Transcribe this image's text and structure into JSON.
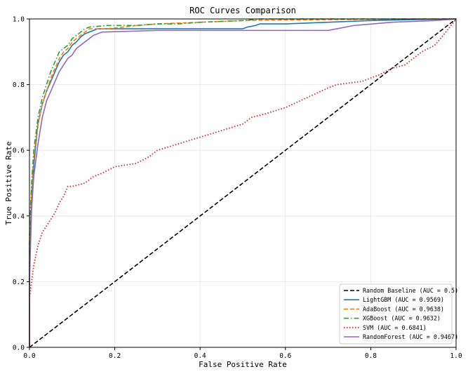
{
  "chart_data": {
    "type": "line",
    "title": "ROC Curves Comparison",
    "xlabel": "False Positive Rate",
    "ylabel": "True Positive Rate",
    "xlim": [
      0.0,
      1.0
    ],
    "ylim": [
      0.0,
      1.0
    ],
    "xticks": [
      0.0,
      0.2,
      0.4,
      0.6,
      0.8,
      1.0
    ],
    "yticks": [
      0.0,
      0.2,
      0.4,
      0.6,
      0.8,
      1.0
    ],
    "xtick_labels": [
      "0.0",
      "0.2",
      "0.4",
      "0.6",
      "0.8",
      "1.0"
    ],
    "ytick_labels": [
      "0.0",
      "0.2",
      "0.4",
      "0.6",
      "0.8",
      "1.0"
    ],
    "grid": true,
    "legend_position": "bottom-right",
    "series": [
      {
        "name": "Random Baseline (AUC = 0.5)",
        "color": "#000000",
        "dash": "dashed",
        "x": [
          0.0,
          1.0
        ],
        "y": [
          0.0,
          1.0
        ]
      },
      {
        "name": "LightGBM (AUC = 0.9569)",
        "color": "#1f77b4",
        "dash": "solid",
        "x": [
          0.0,
          0.0,
          0.005,
          0.01,
          0.015,
          0.02,
          0.03,
          0.04,
          0.05,
          0.06,
          0.07,
          0.08,
          0.09,
          0.1,
          0.11,
          0.12,
          0.13,
          0.14,
          0.16,
          0.2,
          0.3,
          0.4,
          0.5,
          0.51,
          0.53,
          0.54,
          0.6,
          0.7,
          0.8,
          0.9,
          1.0
        ],
        "y": [
          0.0,
          0.3,
          0.44,
          0.55,
          0.62,
          0.68,
          0.74,
          0.78,
          0.81,
          0.84,
          0.87,
          0.89,
          0.9,
          0.92,
          0.93,
          0.945,
          0.955,
          0.96,
          0.97,
          0.97,
          0.97,
          0.97,
          0.97,
          0.975,
          0.98,
          0.985,
          0.985,
          0.99,
          0.995,
          0.998,
          1.0
        ]
      },
      {
        "name": "AdaBoost (AUC = 0.9638)",
        "color": "#ff7f0e",
        "dash": "dashed",
        "x": [
          0.0,
          0.0,
          0.005,
          0.01,
          0.02,
          0.03,
          0.04,
          0.05,
          0.06,
          0.07,
          0.08,
          0.09,
          0.1,
          0.11,
          0.12,
          0.13,
          0.14,
          0.18,
          0.22,
          0.25,
          0.3,
          0.4,
          0.5,
          0.6,
          0.7,
          0.8,
          0.9,
          1.0
        ],
        "y": [
          0.0,
          0.32,
          0.48,
          0.58,
          0.68,
          0.74,
          0.78,
          0.82,
          0.85,
          0.88,
          0.9,
          0.91,
          0.93,
          0.94,
          0.95,
          0.96,
          0.97,
          0.97,
          0.975,
          0.98,
          0.985,
          0.99,
          0.995,
          0.997,
          0.998,
          0.999,
          1.0,
          1.0
        ]
      },
      {
        "name": "XGBoost (AUC = 0.9632)",
        "color": "#2ca02c",
        "dash": "dashdot",
        "x": [
          0.0,
          0.0,
          0.005,
          0.01,
          0.02,
          0.03,
          0.04,
          0.05,
          0.06,
          0.07,
          0.08,
          0.09,
          0.1,
          0.11,
          0.12,
          0.13,
          0.14,
          0.18,
          0.25,
          0.3,
          0.35,
          0.4,
          0.5,
          0.54,
          0.6,
          0.7,
          0.8,
          0.9,
          1.0
        ],
        "y": [
          0.0,
          0.34,
          0.5,
          0.6,
          0.7,
          0.76,
          0.8,
          0.84,
          0.87,
          0.9,
          0.91,
          0.92,
          0.94,
          0.95,
          0.96,
          0.97,
          0.975,
          0.98,
          0.98,
          0.985,
          0.985,
          0.99,
          0.995,
          1.0,
          1.0,
          1.0,
          1.0,
          1.0,
          1.0
        ]
      },
      {
        "name": "SVM (AUC = 0.6841)",
        "color": "#d62728",
        "dash": "dotted",
        "x": [
          0.0,
          0.0,
          0.005,
          0.01,
          0.015,
          0.02,
          0.03,
          0.04,
          0.05,
          0.06,
          0.07,
          0.08,
          0.09,
          0.1,
          0.13,
          0.15,
          0.17,
          0.2,
          0.25,
          0.28,
          0.3,
          0.35,
          0.4,
          0.45,
          0.5,
          0.52,
          0.55,
          0.6,
          0.65,
          0.7,
          0.72,
          0.78,
          0.82,
          0.85,
          0.88,
          0.9,
          0.92,
          0.95,
          0.97,
          1.0
        ],
        "y": [
          0.0,
          0.15,
          0.2,
          0.25,
          0.28,
          0.31,
          0.35,
          0.37,
          0.39,
          0.41,
          0.44,
          0.46,
          0.49,
          0.49,
          0.5,
          0.52,
          0.53,
          0.55,
          0.56,
          0.58,
          0.6,
          0.62,
          0.64,
          0.66,
          0.68,
          0.7,
          0.71,
          0.73,
          0.76,
          0.79,
          0.8,
          0.81,
          0.83,
          0.85,
          0.86,
          0.88,
          0.9,
          0.92,
          0.95,
          1.0
        ]
      },
      {
        "name": "RandomForest (AUC = 0.9467)",
        "color": "#9467bd",
        "dash": "solid",
        "x": [
          0.0,
          0.0,
          0.005,
          0.01,
          0.02,
          0.03,
          0.04,
          0.05,
          0.06,
          0.07,
          0.08,
          0.09,
          0.1,
          0.11,
          0.12,
          0.13,
          0.14,
          0.15,
          0.17,
          0.3,
          0.5,
          0.6,
          0.7,
          0.72,
          0.76,
          0.85,
          0.95,
          1.0
        ],
        "y": [
          0.0,
          0.2,
          0.42,
          0.52,
          0.62,
          0.7,
          0.75,
          0.78,
          0.81,
          0.84,
          0.86,
          0.88,
          0.89,
          0.91,
          0.92,
          0.93,
          0.94,
          0.95,
          0.96,
          0.965,
          0.965,
          0.965,
          0.965,
          0.97,
          0.98,
          0.99,
          0.995,
          1.0
        ]
      }
    ]
  }
}
